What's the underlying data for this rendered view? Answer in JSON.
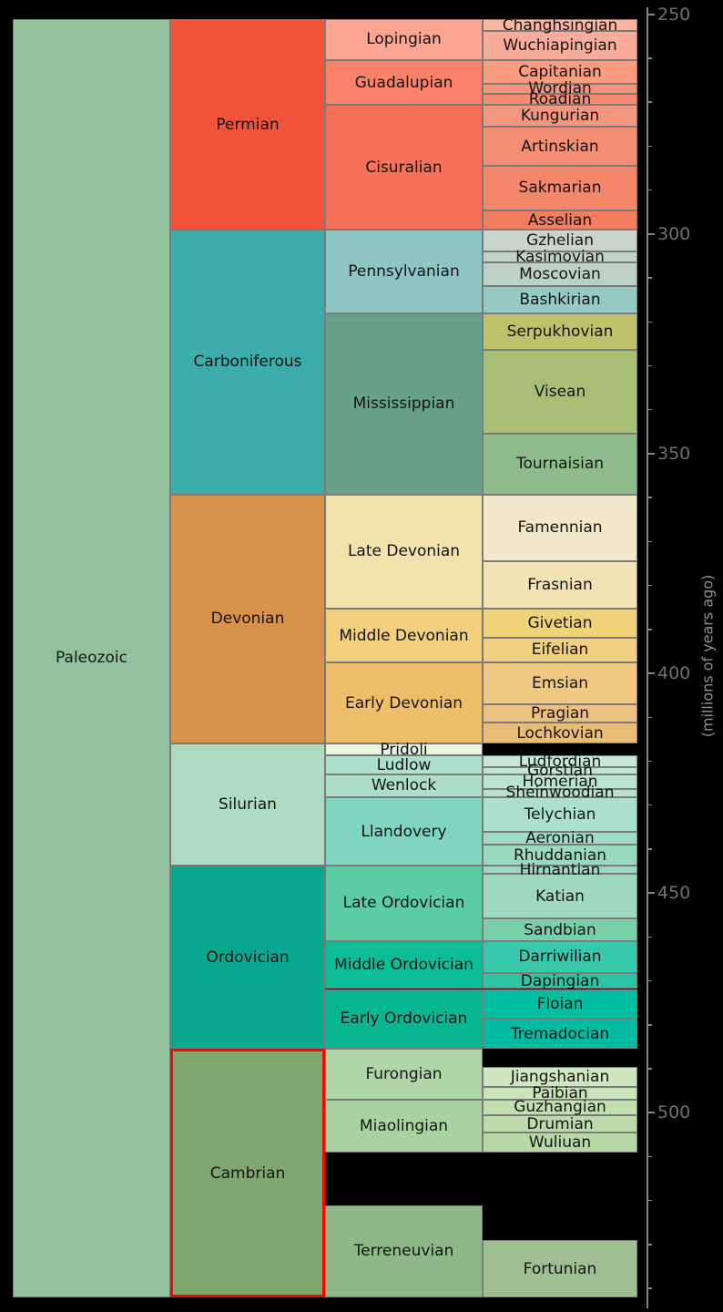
{
  "chart_data": {
    "type": "stratigraphic-column",
    "title": "",
    "description": "Geologic time scale of the Paleozoic era with periods, epochs and stages; Cambrian period highlighted in red",
    "y_axis": {
      "label": "(millions of years ago)",
      "unit": "Ma",
      "min": 250,
      "max": 542,
      "major_ticks": [
        250,
        300,
        350,
        400,
        450,
        500
      ],
      "minor_tick_step": 10,
      "direction": "age increases downward",
      "side": "right",
      "tick_color": "#707070",
      "label_color": "#8f8f8f"
    },
    "columns": [
      "era",
      "period",
      "epoch",
      "stage"
    ],
    "highlight": {
      "unit": "Cambrian",
      "border_color": "#ff0000"
    },
    "background_color": "#000000",
    "box_border_color": "#7b7b7b",
    "units": [
      {
        "name": "Paleozoic",
        "rank": "era",
        "top_ma": 251.0,
        "base_ma": 542.0,
        "color": "#92C29D"
      },
      {
        "name": "Permian",
        "rank": "period",
        "top_ma": 251.0,
        "base_ma": 299.0,
        "color": "#F1543B"
      },
      {
        "name": "Carboniferous",
        "rank": "period",
        "top_ma": 299.0,
        "base_ma": 359.2,
        "color": "#3DADAB"
      },
      {
        "name": "Devonian",
        "rank": "period",
        "top_ma": 359.2,
        "base_ma": 416.0,
        "color": "#D8924A"
      },
      {
        "name": "Silurian",
        "rank": "period",
        "top_ma": 416.0,
        "base_ma": 443.7,
        "color": "#AEDCC3"
      },
      {
        "name": "Ordovician",
        "rank": "period",
        "top_ma": 443.7,
        "base_ma": 485.4,
        "color": "#09A88E"
      },
      {
        "name": "Cambrian",
        "rank": "period",
        "top_ma": 485.4,
        "base_ma": 542.0,
        "color": "#81A771",
        "highlight": true
      },
      {
        "name": "Lopingian",
        "rank": "epoch",
        "top_ma": 251.0,
        "base_ma": 260.4,
        "color": "#FAA693"
      },
      {
        "name": "Guadalupian",
        "rank": "epoch",
        "top_ma": 260.4,
        "base_ma": 270.6,
        "color": "#FB8268"
      },
      {
        "name": "Cisuralian",
        "rank": "epoch",
        "top_ma": 270.6,
        "base_ma": 299.0,
        "color": "#F7705A"
      },
      {
        "name": "Pennsylvanian",
        "rank": "epoch",
        "top_ma": 299.0,
        "base_ma": 318.1,
        "color": "#8EC6C3"
      },
      {
        "name": "Mississippian",
        "rank": "epoch",
        "top_ma": 318.1,
        "base_ma": 359.2,
        "color": "#67A189"
      },
      {
        "name": "Late Devonian",
        "rank": "epoch",
        "top_ma": 359.2,
        "base_ma": 385.3,
        "color": "#F2E2AC"
      },
      {
        "name": "Middle Devonian",
        "rank": "epoch",
        "top_ma": 385.3,
        "base_ma": 397.5,
        "color": "#F1CF7C"
      },
      {
        "name": "Early Devonian",
        "rank": "epoch",
        "top_ma": 397.5,
        "base_ma": 416.0,
        "color": "#EFBE6B"
      },
      {
        "name": "Pridoli",
        "rank": "epoch",
        "top_ma": 416.0,
        "base_ma": 418.7,
        "color": "#E9F4E3"
      },
      {
        "name": "Ludlow",
        "rank": "epoch",
        "top_ma": 418.7,
        "base_ma": 422.9,
        "color": "#AEE0CE"
      },
      {
        "name": "Wenlock",
        "rank": "epoch",
        "top_ma": 422.9,
        "base_ma": 428.2,
        "color": "#ACDFC8"
      },
      {
        "name": "Llandovery",
        "rank": "epoch",
        "top_ma": 428.2,
        "base_ma": 443.7,
        "color": "#80D5BE"
      },
      {
        "name": "Late Ordovician",
        "rank": "epoch",
        "top_ma": 443.7,
        "base_ma": 460.9,
        "color": "#5BCCA4"
      },
      {
        "name": "Middle Ordovician",
        "rank": "epoch",
        "top_ma": 460.9,
        "base_ma": 471.8,
        "color": "#0DBD97"
      },
      {
        "name": "Early Ordovician",
        "rank": "epoch",
        "top_ma": 471.8,
        "base_ma": 485.4,
        "color": "#09B692"
      },
      {
        "name": "Furongian",
        "rank": "epoch",
        "top_ma": 485.4,
        "base_ma": 497.0,
        "color": "#AFD6A6"
      },
      {
        "name": "Miaolingian",
        "rank": "epoch",
        "top_ma": 497.0,
        "base_ma": 509.0,
        "color": "#A9D2A0"
      },
      {
        "name": "Terreneuvian",
        "rank": "epoch",
        "top_ma": 521.0,
        "base_ma": 542.0,
        "color": "#8FB888"
      },
      {
        "name": "Changhsingian",
        "rank": "stage",
        "top_ma": 251.0,
        "base_ma": 253.8,
        "color": "#FBB4A2"
      },
      {
        "name": "Wuchiapingian",
        "rank": "stage",
        "top_ma": 253.8,
        "base_ma": 260.4,
        "color": "#FAAC9A"
      },
      {
        "name": "Capitanian",
        "rank": "stage",
        "top_ma": 260.4,
        "base_ma": 265.8,
        "color": "#FB9B80"
      },
      {
        "name": "Wordian",
        "rank": "stage",
        "top_ma": 265.8,
        "base_ma": 268.0,
        "color": "#FA9378"
      },
      {
        "name": "Roadian",
        "rank": "stage",
        "top_ma": 268.0,
        "base_ma": 270.6,
        "color": "#FA8B70"
      },
      {
        "name": "Kungurian",
        "rank": "stage",
        "top_ma": 270.6,
        "base_ma": 275.6,
        "color": "#F59680"
      },
      {
        "name": "Artinskian",
        "rank": "stage",
        "top_ma": 275.6,
        "base_ma": 284.4,
        "color": "#F48E74"
      },
      {
        "name": "Sakmarian",
        "rank": "stage",
        "top_ma": 284.4,
        "base_ma": 294.6,
        "color": "#F48669"
      },
      {
        "name": "Asselian",
        "rank": "stage",
        "top_ma": 294.6,
        "base_ma": 299.0,
        "color": "#F37D5F"
      },
      {
        "name": "Gzhelian",
        "rank": "stage",
        "top_ma": 299.0,
        "base_ma": 303.9,
        "color": "#CBD4CC"
      },
      {
        "name": "Kasimovian",
        "rank": "stage",
        "top_ma": 303.9,
        "base_ma": 306.5,
        "color": "#C2D2C6"
      },
      {
        "name": "Moscovian",
        "rank": "stage",
        "top_ma": 306.5,
        "base_ma": 311.7,
        "color": "#BDD0C6"
      },
      {
        "name": "Bashkirian",
        "rank": "stage",
        "top_ma": 311.7,
        "base_ma": 318.1,
        "color": "#95CAC2"
      },
      {
        "name": "Serpukhovian",
        "rank": "stage",
        "top_ma": 318.1,
        "base_ma": 326.4,
        "color": "#BFC26B"
      },
      {
        "name": "Visean",
        "rank": "stage",
        "top_ma": 326.4,
        "base_ma": 345.3,
        "color": "#A7BE74"
      },
      {
        "name": "Tournaisian",
        "rank": "stage",
        "top_ma": 345.3,
        "base_ma": 359.2,
        "color": "#8FBC8C"
      },
      {
        "name": "Famennian",
        "rank": "stage",
        "top_ma": 359.2,
        "base_ma": 374.5,
        "color": "#F1E8CB"
      },
      {
        "name": "Frasnian",
        "rank": "stage",
        "top_ma": 374.5,
        "base_ma": 385.3,
        "color": "#F2E4B2"
      },
      {
        "name": "Givetian",
        "rank": "stage",
        "top_ma": 385.3,
        "base_ma": 391.8,
        "color": "#F0D376"
      },
      {
        "name": "Eifelian",
        "rank": "stage",
        "top_ma": 391.8,
        "base_ma": 397.5,
        "color": "#F0CF82"
      },
      {
        "name": "Emsian",
        "rank": "stage",
        "top_ma": 397.5,
        "base_ma": 407.0,
        "color": "#EFC981"
      },
      {
        "name": "Pragian",
        "rank": "stage",
        "top_ma": 407.0,
        "base_ma": 411.2,
        "color": "#ECC180"
      },
      {
        "name": "Lochkovian",
        "rank": "stage",
        "top_ma": 411.2,
        "base_ma": 416.0,
        "color": "#EABD76"
      },
      {
        "name": "Ludfordian",
        "rank": "stage",
        "top_ma": 418.7,
        "base_ma": 421.3,
        "color": "#C7EAD7"
      },
      {
        "name": "Gorstian",
        "rank": "stage",
        "top_ma": 421.3,
        "base_ma": 422.9,
        "color": "#C1E7D3"
      },
      {
        "name": "Homerian",
        "rank": "stage",
        "top_ma": 422.9,
        "base_ma": 426.2,
        "color": "#BCE5CF"
      },
      {
        "name": "Sheinwoodian",
        "rank": "stage",
        "top_ma": 426.2,
        "base_ma": 428.2,
        "color": "#B6E2CA"
      },
      {
        "name": "Telychian",
        "rank": "stage",
        "top_ma": 428.2,
        "base_ma": 436.0,
        "color": "#ABE0CE"
      },
      {
        "name": "Aeronian",
        "rank": "stage",
        "top_ma": 436.0,
        "base_ma": 439.0,
        "color": "#A0DCC6"
      },
      {
        "name": "Rhuddanian",
        "rank": "stage",
        "top_ma": 439.0,
        "base_ma": 443.7,
        "color": "#99DABF"
      },
      {
        "name": "Hirnantian",
        "rank": "stage",
        "top_ma": 443.7,
        "base_ma": 445.6,
        "color": "#9BD7C2"
      },
      {
        "name": "Katian",
        "rank": "stage",
        "top_ma": 445.6,
        "base_ma": 455.8,
        "color": "#9ED9C0"
      },
      {
        "name": "Sandbian",
        "rank": "stage",
        "top_ma": 455.8,
        "base_ma": 460.9,
        "color": "#79CFA7"
      },
      {
        "name": "Darriwilian",
        "rank": "stage",
        "top_ma": 460.9,
        "base_ma": 468.1,
        "color": "#38C8AB"
      },
      {
        "name": "Dapingian",
        "rank": "stage",
        "top_ma": 468.1,
        "base_ma": 471.8,
        "color": "#2CC4A3"
      },
      {
        "name": "Floian",
        "rank": "stage",
        "top_ma": 471.8,
        "base_ma": 478.6,
        "color": "#00BFA1"
      },
      {
        "name": "Tremadocian",
        "rank": "stage",
        "top_ma": 478.6,
        "base_ma": 485.4,
        "color": "#00BBA2"
      },
      {
        "name": "Jiangshanian",
        "rank": "stage",
        "top_ma": 489.5,
        "base_ma": 494.0,
        "color": "#CFE6BE"
      },
      {
        "name": "Paibian",
        "rank": "stage",
        "top_ma": 494.0,
        "base_ma": 497.0,
        "color": "#C9E3B8"
      },
      {
        "name": "Guzhangian",
        "rank": "stage",
        "top_ma": 497.0,
        "base_ma": 500.5,
        "color": "#C3DFB0"
      },
      {
        "name": "Drumian",
        "rank": "stage",
        "top_ma": 500.5,
        "base_ma": 504.5,
        "color": "#BDDBAA"
      },
      {
        "name": "Wuliuan",
        "rank": "stage",
        "top_ma": 504.5,
        "base_ma": 509.0,
        "color": "#B7D7A4"
      },
      {
        "name": "Fortunian",
        "rank": "stage",
        "top_ma": 529.0,
        "base_ma": 542.0,
        "color": "#9FBF93"
      }
    ]
  }
}
